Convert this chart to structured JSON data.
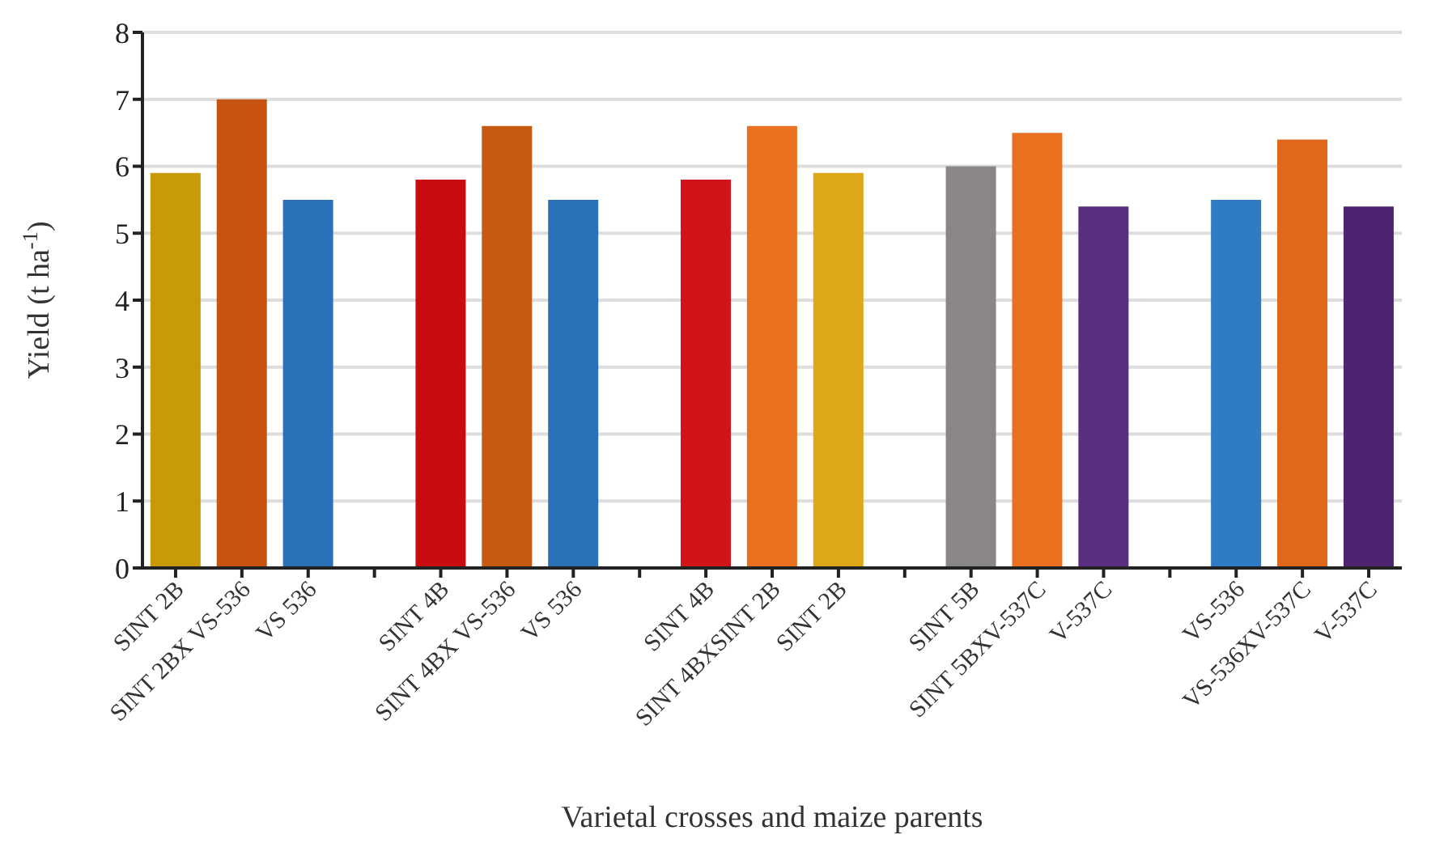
{
  "chart_data": {
    "type": "bar",
    "xlabel": "Varietal crosses and maize parents",
    "ylabel": "Yield (t ha$^{-1}$)",
    "categories": [
      "SINT 2B",
      "SINT 2BX VS-536",
      "VS 536",
      null,
      "SINT 4B",
      "SINT 4BX VS-536",
      "VS 536",
      null,
      "SINT 4B",
      "SINT 4BXSINT 2B",
      "SINT 2B",
      null,
      "SINT 5B",
      "SINT 5BXV-537C",
      "V-537C",
      null,
      "VS-536",
      "VS-536XV-537C",
      "V-537C"
    ],
    "values": [
      5.9,
      7.0,
      5.5,
      null,
      5.8,
      6.6,
      5.5,
      null,
      5.8,
      6.6,
      5.9,
      null,
      6.0,
      6.5,
      5.4,
      null,
      5.5,
      6.4,
      5.4
    ],
    "colors": [
      "#c89a08",
      "#c65410",
      "#2a72b8",
      null,
      "#c80c12",
      "#c65a10",
      "#2a72b8",
      null,
      "#d0141a",
      "#e8701e",
      "#dca81a",
      null,
      "#8a8686",
      "#e8701e",
      "#5a2e80",
      null,
      "#2e7cc4",
      "#e0681a",
      "#4e2470"
    ],
    "ylim": [
      0,
      8
    ],
    "yticks": [
      0,
      1,
      2,
      3,
      4,
      5,
      6,
      7,
      8
    ],
    "grid": "y"
  }
}
